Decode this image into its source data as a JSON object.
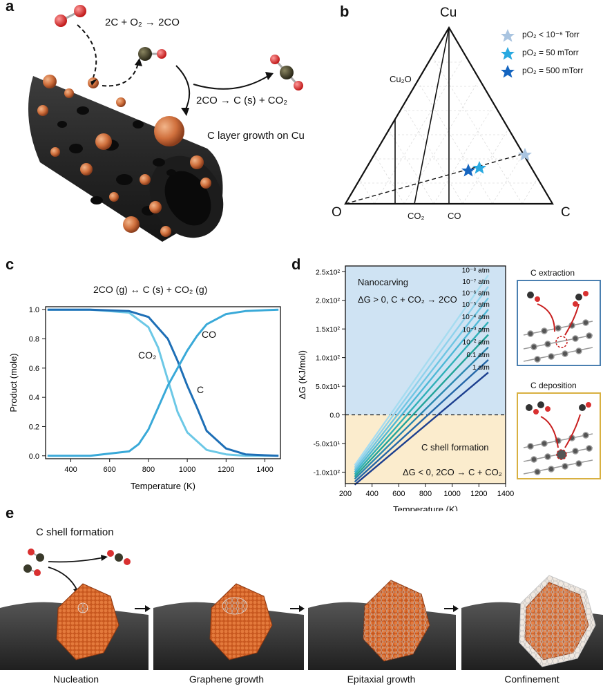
{
  "panels": {
    "a": "a",
    "b": "b",
    "c": "c",
    "d": "d",
    "e": "e"
  },
  "panel_a": {
    "reaction1": "2C + O₂ → 2CO",
    "reaction2": "2CO → C (s) + CO₂",
    "caption": "C layer growth on Cu"
  },
  "panel_b": {
    "vertex_top": "Cu",
    "vertex_left": "O",
    "vertex_right": "C",
    "label_cu2o": "Cu₂O",
    "label_co2": "CO₂",
    "label_co": "CO",
    "legend": [
      {
        "label": "pO₂ < 10⁻⁶ Torr",
        "color": "#a9c4e0"
      },
      {
        "label": "pO₂ = 50 mTorr",
        "color": "#29a9e0"
      },
      {
        "label": "pO₂ = 500 mTorr",
        "color": "#1565c0"
      }
    ]
  },
  "chart_data": [
    {
      "type": "line",
      "title": "2CO (g) ↔ C (s) + CO₂ (g)",
      "xlabel": "Temperature (K)",
      "ylabel": "Product (mole)",
      "xlim": [
        270,
        1480
      ],
      "ylim": [
        -0.02,
        1.02
      ],
      "xticks": [
        "400",
        "600",
        "800",
        "1000",
        "1200",
        "1400"
      ],
      "yticks": [
        "0.0",
        "0.2",
        "0.4",
        "0.6",
        "0.8",
        "1.0"
      ],
      "series": [
        {
          "name": "CO2",
          "label": "CO₂",
          "color": "#6cc8e6",
          "x": [
            280,
            500,
            700,
            800,
            850,
            900,
            950,
            1000,
            1100,
            1200,
            1300,
            1470
          ],
          "y": [
            1.0,
            1.0,
            0.98,
            0.88,
            0.74,
            0.52,
            0.3,
            0.16,
            0.04,
            0.01,
            0.0,
            0.0
          ]
        },
        {
          "name": "C",
          "label": "C",
          "color": "#1e6fb6",
          "x": [
            280,
            500,
            700,
            800,
            900,
            950,
            1000,
            1050,
            1100,
            1200,
            1300,
            1470
          ],
          "y": [
            1.0,
            1.0,
            0.99,
            0.95,
            0.8,
            0.65,
            0.48,
            0.33,
            0.17,
            0.05,
            0.01,
            0.0
          ]
        },
        {
          "name": "CO",
          "label": "CO",
          "color": "#39a9d8",
          "x": [
            280,
            500,
            700,
            750,
            800,
            850,
            900,
            950,
            1000,
            1050,
            1100,
            1200,
            1300,
            1470
          ],
          "y": [
            0.0,
            0.0,
            0.03,
            0.08,
            0.18,
            0.33,
            0.48,
            0.6,
            0.72,
            0.82,
            0.9,
            0.97,
            0.99,
            1.0
          ]
        }
      ]
    },
    {
      "type": "line",
      "xlabel": "Temperature (K)",
      "ylabel": "ΔG (KJ/mol)",
      "xlim": [
        200,
        1400
      ],
      "ylim": [
        -120,
        260
      ],
      "xticks": [
        "200",
        "400",
        "600",
        "800",
        "1000",
        "1200",
        "1400"
      ],
      "yticks": [
        "-1.0x10²",
        "-5.0x10¹",
        "0.0",
        "5.0x10¹",
        "1.0x10²",
        "1.5x10²",
        "2.0x10²",
        "2.5x10²"
      ],
      "ytick_values": [
        -100,
        -50,
        0,
        50,
        100,
        150,
        200,
        250
      ],
      "xtick_values": [
        200,
        400,
        600,
        800,
        1000,
        1200,
        1400
      ],
      "region_labels": {
        "top_title": "Nanocarving",
        "top_eq": "ΔG > 0, C + CO₂ → 2CO",
        "bottom_title": "C shell formation",
        "bottom_eq": "ΔG < 0, 2CO → C + CO₂"
      },
      "series": [
        {
          "name": "10⁻⁸ atm",
          "color": "#a6dcf0",
          "x": [
            270,
            1270
          ],
          "y": [
            -88,
            244
          ]
        },
        {
          "name": "10⁻⁷ atm",
          "color": "#8fd2ec",
          "x": [
            270,
            1270
          ],
          "y": [
            -92,
            224
          ]
        },
        {
          "name": "10⁻⁶ atm",
          "color": "#6fc6e3",
          "x": [
            270,
            1270
          ],
          "y": [
            -96,
            204
          ]
        },
        {
          "name": "10⁻⁵ atm",
          "color": "#4db8d6",
          "x": [
            270,
            1270
          ],
          "y": [
            -100,
            184
          ]
        },
        {
          "name": "10⁻⁴ atm",
          "color": "#2fb0b8",
          "x": [
            270,
            1270
          ],
          "y": [
            -104,
            162
          ]
        },
        {
          "name": "10⁻³ atm",
          "color": "#22a39a",
          "x": [
            270,
            1270
          ],
          "y": [
            -108,
            140
          ]
        },
        {
          "name": "10⁻² atm",
          "color": "#2a88b0",
          "x": [
            270,
            1270
          ],
          "y": [
            -112,
            118
          ]
        },
        {
          "name": "0.1 atm",
          "color": "#2466a8",
          "x": [
            270,
            1270
          ],
          "y": [
            -117,
            96
          ]
        },
        {
          "name": "1 atm",
          "color": "#1c3f8f",
          "x": [
            270,
            1270
          ],
          "y": [
            -122,
            74
          ]
        }
      ]
    }
  ],
  "panel_d_side": {
    "extraction": "C extraction",
    "deposition": "C deposition"
  },
  "panel_e": {
    "title": "C shell formation",
    "stages": [
      "Nucleation",
      "Graphene growth",
      "Epitaxial growth",
      "Confinement"
    ]
  },
  "colors": {
    "copper": "#d8743a",
    "carbon": "#3a3a3a",
    "oxygen": "#d93030",
    "arrow": "#c81e1e"
  }
}
